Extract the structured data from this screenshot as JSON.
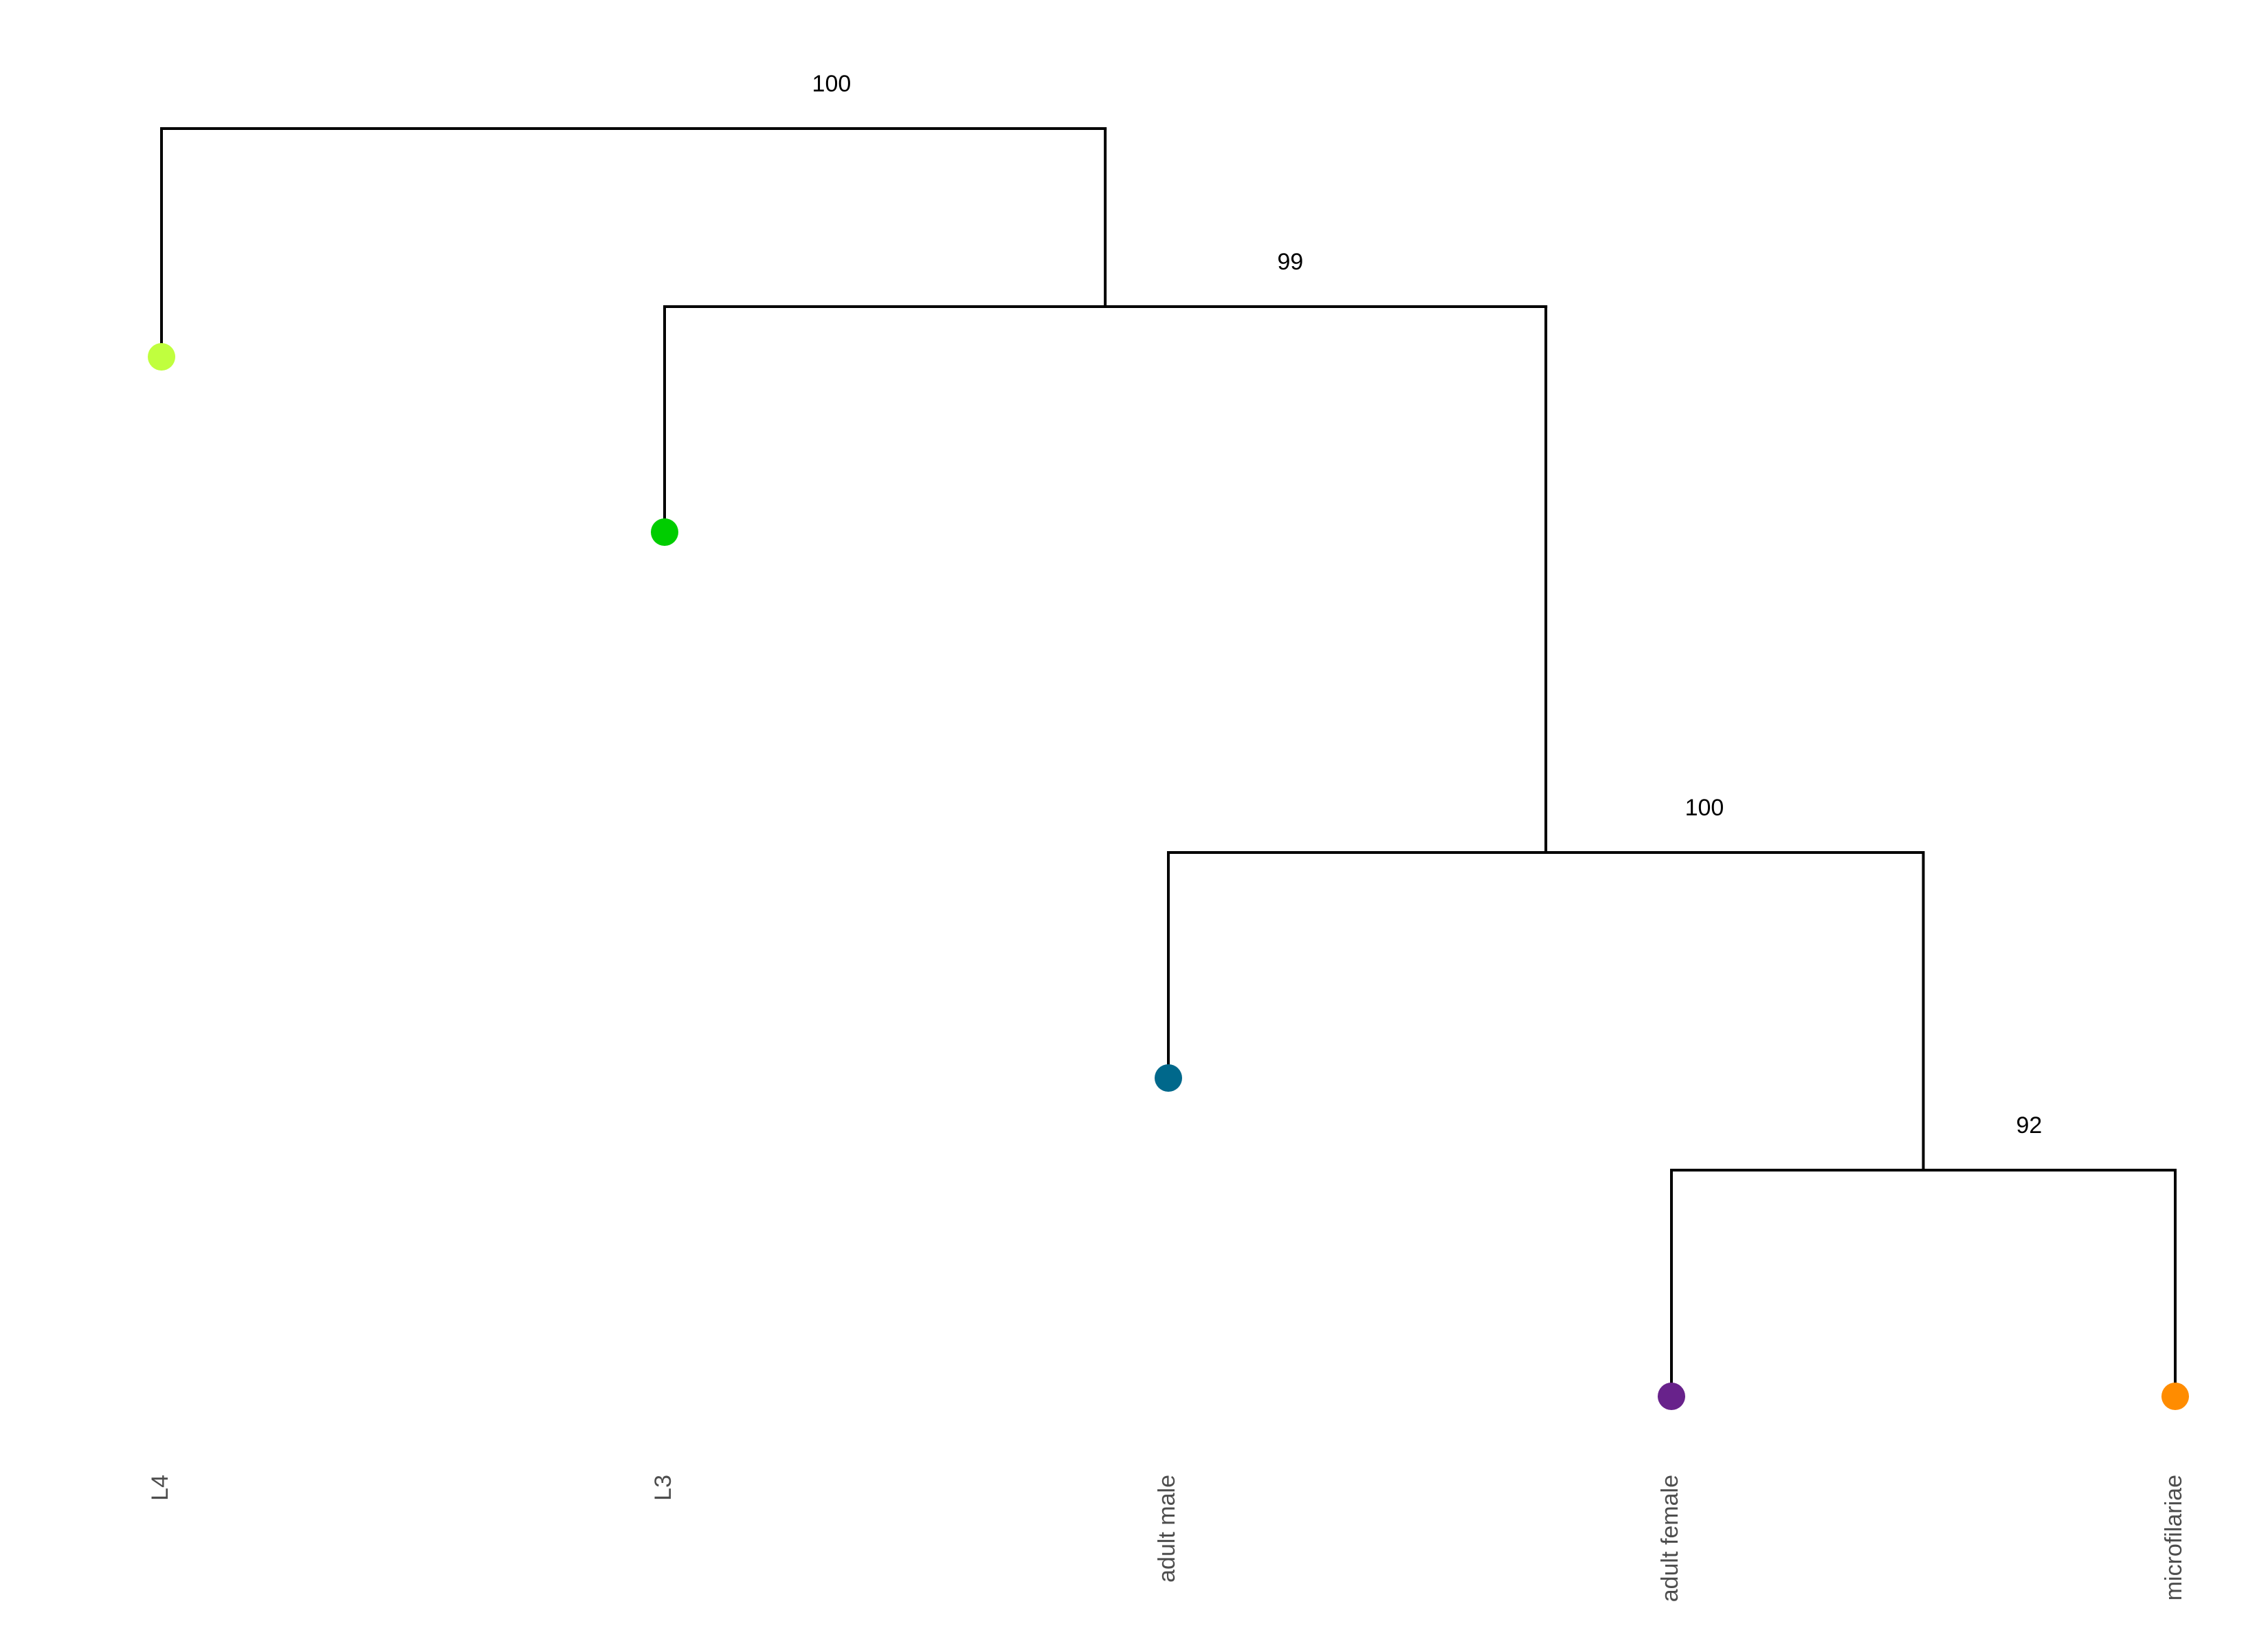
{
  "tree": {
    "leaves": [
      {
        "id": "L4",
        "label": "L4",
        "color": "#c0ff3e"
      },
      {
        "id": "L3",
        "label": "L3",
        "color": "#00cd00"
      },
      {
        "id": "adult_male",
        "label": "adult male",
        "color": "#00688b"
      },
      {
        "id": "adult_female",
        "label": "adult female",
        "color": "#68228b"
      },
      {
        "id": "microfilariae",
        "label": "microfilariae",
        "color": "#ff8c00"
      }
    ],
    "clades": [
      {
        "id": "n4",
        "children": [
          "adult_female",
          "microfilariae"
        ],
        "support": "92"
      },
      {
        "id": "n3",
        "children": [
          "adult_male",
          "n4"
        ],
        "support": "100"
      },
      {
        "id": "n2",
        "children": [
          "L3",
          "n3"
        ],
        "support": "99"
      },
      {
        "id": "n1",
        "children": [
          "L4",
          "n2"
        ],
        "support": "100"
      }
    ],
    "branch_color": "#000000",
    "support_label_color": "#000000",
    "leaf_label_color": "#4d4d4d"
  }
}
